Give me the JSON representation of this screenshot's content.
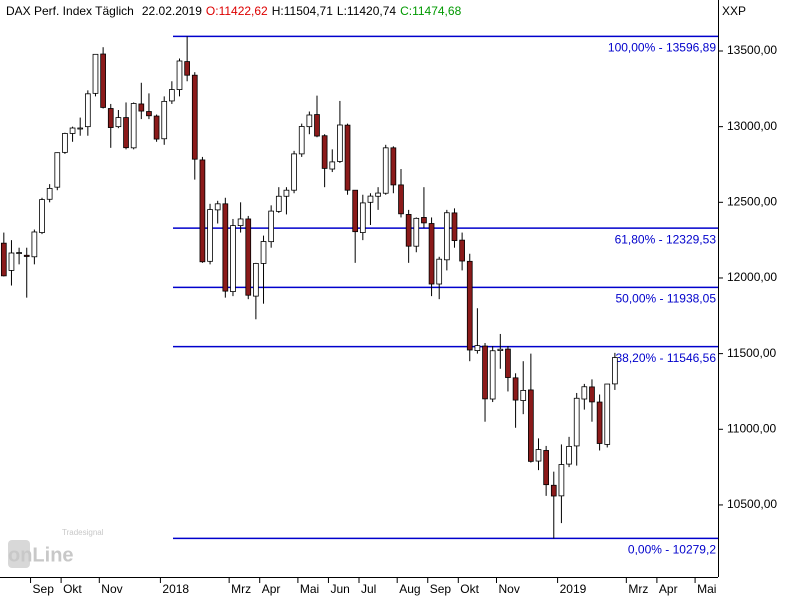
{
  "chart_data": {
    "type": "candlestick",
    "title": "DAX Perf. Index Täglich",
    "date": "22.02.2019",
    "quote": [
      {
        "label": "O:11422,62",
        "color": "#dd0000"
      },
      {
        "label": "H:11504,71",
        "color": "#000000"
      },
      {
        "label": "L:11420,74",
        "color": "#000000"
      },
      {
        "label": "C:11474,68",
        "color": "#009900"
      }
    ],
    "symbol": "XXP",
    "logo": {
      "brand": "Tradesignal",
      "text": "onLine"
    },
    "up_color": "#ffffff",
    "down_color": "#8b1a1a",
    "level_color": "#0000cc",
    "ylim": [
      10037,
      13837
    ],
    "yticks": [
      {
        "value": 10500,
        "label": "10500,00"
      },
      {
        "value": 11000,
        "label": "11000,00"
      },
      {
        "value": 11500,
        "label": "11500,00"
      },
      {
        "value": 12000,
        "label": "12000,00"
      },
      {
        "value": 12500,
        "label": "12500,00"
      },
      {
        "value": 13000,
        "label": "13000,00"
      },
      {
        "value": 13500,
        "label": "13500,00"
      }
    ],
    "categories": [
      null,
      null,
      null,
      null,
      "Sep",
      null,
      null,
      null,
      "Okt",
      null,
      null,
      null,
      null,
      "Nov",
      null,
      null,
      null,
      null,
      null,
      null,
      null,
      "2018",
      null,
      null,
      null,
      null,
      null,
      null,
      null,
      null,
      "Mrz",
      null,
      null,
      null,
      "Apr",
      null,
      null,
      null,
      null,
      "Mai",
      null,
      null,
      null,
      "Jun",
      null,
      null,
      null,
      "Jul",
      null,
      null,
      null,
      null,
      "Aug",
      null,
      null,
      null,
      "Sep",
      null,
      null,
      null,
      "Okt",
      null,
      null,
      null,
      null,
      "Nov",
      null,
      null,
      null,
      null,
      null,
      null,
      null,
      "2019",
      null,
      null,
      null,
      null,
      null,
      null,
      null,
      null,
      "Mrz",
      null,
      null,
      null,
      "Apr",
      null,
      null,
      null,
      null,
      "Mai",
      null,
      null
    ],
    "open": [
      12230,
      12050,
      12165,
      12150,
      12140,
      12300,
      12520,
      12600,
      12830,
      12955,
      12990,
      13000,
      13220,
      13480,
      13120,
      13000,
      13060,
      12860,
      13150,
      13100,
      13070,
      12920,
      13170,
      13245,
      13430,
      13340,
      12780,
      12110,
      12450,
      12490,
      11910,
      12346,
      12390,
      11880,
      12096,
      12240,
      12440,
      12540,
      12580,
      12820,
      13000,
      13080,
      12940,
      12720,
      12770,
      13010,
      12580,
      12300,
      12500,
      12540,
      12560,
      12860,
      12615,
      12420,
      12210,
      12400,
      12360,
      11960,
      12120,
      12430,
      12250,
      12110,
      11520,
      11550,
      11200,
      11520,
      11530,
      11340,
      11190,
      11260,
      10790,
      10860,
      10630,
      10560,
      10770,
      10890,
      11200,
      11280,
      11180,
      10900,
      11300,
      null,
      null,
      null,
      null,
      null,
      null,
      null,
      null,
      null,
      null,
      null,
      null,
      null
    ],
    "high": [
      12300,
      12250,
      12200,
      12200,
      12320,
      12530,
      12620,
      12830,
      12960,
      13000,
      13060,
      13240,
      13480,
      13525,
      13150,
      13110,
      13160,
      13160,
      13290,
      13220,
      13080,
      13200,
      13300,
      13450,
      13597,
      13360,
      12800,
      12490,
      12510,
      12530,
      12390,
      12500,
      12410,
      12100,
      12280,
      12480,
      12600,
      12600,
      12840,
      13020,
      13100,
      13205,
      12950,
      12850,
      13170,
      13020,
      12580,
      12550,
      12560,
      12600,
      12880,
      12870,
      12720,
      12450,
      12400,
      12600,
      12400,
      12140,
      12450,
      12460,
      12300,
      12160,
      11800,
      11570,
      11550,
      11630,
      11550,
      11370,
      11450,
      11500,
      10940,
      10890,
      10720,
      10900,
      10950,
      11240,
      11300,
      11330,
      11230,
      11300,
      11505,
      null,
      null,
      null,
      null,
      null,
      null,
      null,
      null,
      null,
      null,
      null,
      null,
      null
    ],
    "low": [
      12010,
      11950,
      12090,
      11870,
      12090,
      12290,
      12500,
      12580,
      12820,
      12900,
      12940,
      12940,
      13200,
      13120,
      12860,
      12990,
      12850,
      12850,
      13050,
      13050,
      12900,
      12880,
      13150,
      13200,
      13300,
      12650,
      12100,
      12090,
      12360,
      11870,
      11880,
      12300,
      11860,
      11727,
      11830,
      12200,
      12430,
      12420,
      12560,
      12800,
      12950,
      12930,
      12600,
      12700,
      12760,
      12550,
      12100,
      12250,
      12350,
      12450,
      12550,
      12560,
      12400,
      12100,
      12170,
      12330,
      11880,
      11860,
      12050,
      12200,
      12050,
      11450,
      11500,
      11050,
      11180,
      11400,
      11250,
      11010,
      11100,
      10780,
      10730,
      10560,
      10279,
      10380,
      10750,
      10760,
      11130,
      11050,
      10860,
      10880,
      11260,
      null,
      null,
      null,
      null,
      null,
      null,
      null,
      null,
      null,
      null,
      null,
      null,
      null
    ],
    "close": [
      12014,
      12165,
      12168,
      12142,
      12304,
      12518,
      12592,
      12828,
      12955,
      12991,
      12991,
      13217,
      13478,
      13127,
      12994,
      13060,
      12861,
      13153,
      13103,
      13072,
      12918,
      13167,
      13245,
      13434,
      13340,
      12785,
      12107,
      12452,
      12490,
      11913,
      12346,
      12390,
      11886,
      12096,
      12241,
      12442,
      12540,
      12580,
      12820,
      13001,
      13077,
      12938,
      12724,
      12767,
      13011,
      12580,
      12306,
      12496,
      12541,
      12561,
      12860,
      12615,
      12424,
      12210,
      12394,
      12364,
      11960,
      12124,
      12431,
      12247,
      12112,
      11524,
      11553,
      11201,
      11519,
      11529,
      11342,
      11193,
      11257,
      10788,
      10866,
      10634,
      10559,
      10767,
      10887,
      11205,
      11281,
      11181,
      10906,
      11299,
      11474,
      null,
      null,
      null,
      null,
      null,
      null,
      null,
      null,
      null,
      null,
      null,
      null,
      null
    ],
    "levels": [
      {
        "value": 13596.89,
        "label": "100,00% - 13596,89"
      },
      {
        "value": 12329.53,
        "label": "61,80% - 12329,53"
      },
      {
        "value": 11938.05,
        "label": "50,00% - 11938,05"
      },
      {
        "value": 11546.56,
        "label": "38,20% - 11546,56"
      },
      {
        "value": 10279.2,
        "label": "0,00% - 10279,2"
      }
    ]
  }
}
